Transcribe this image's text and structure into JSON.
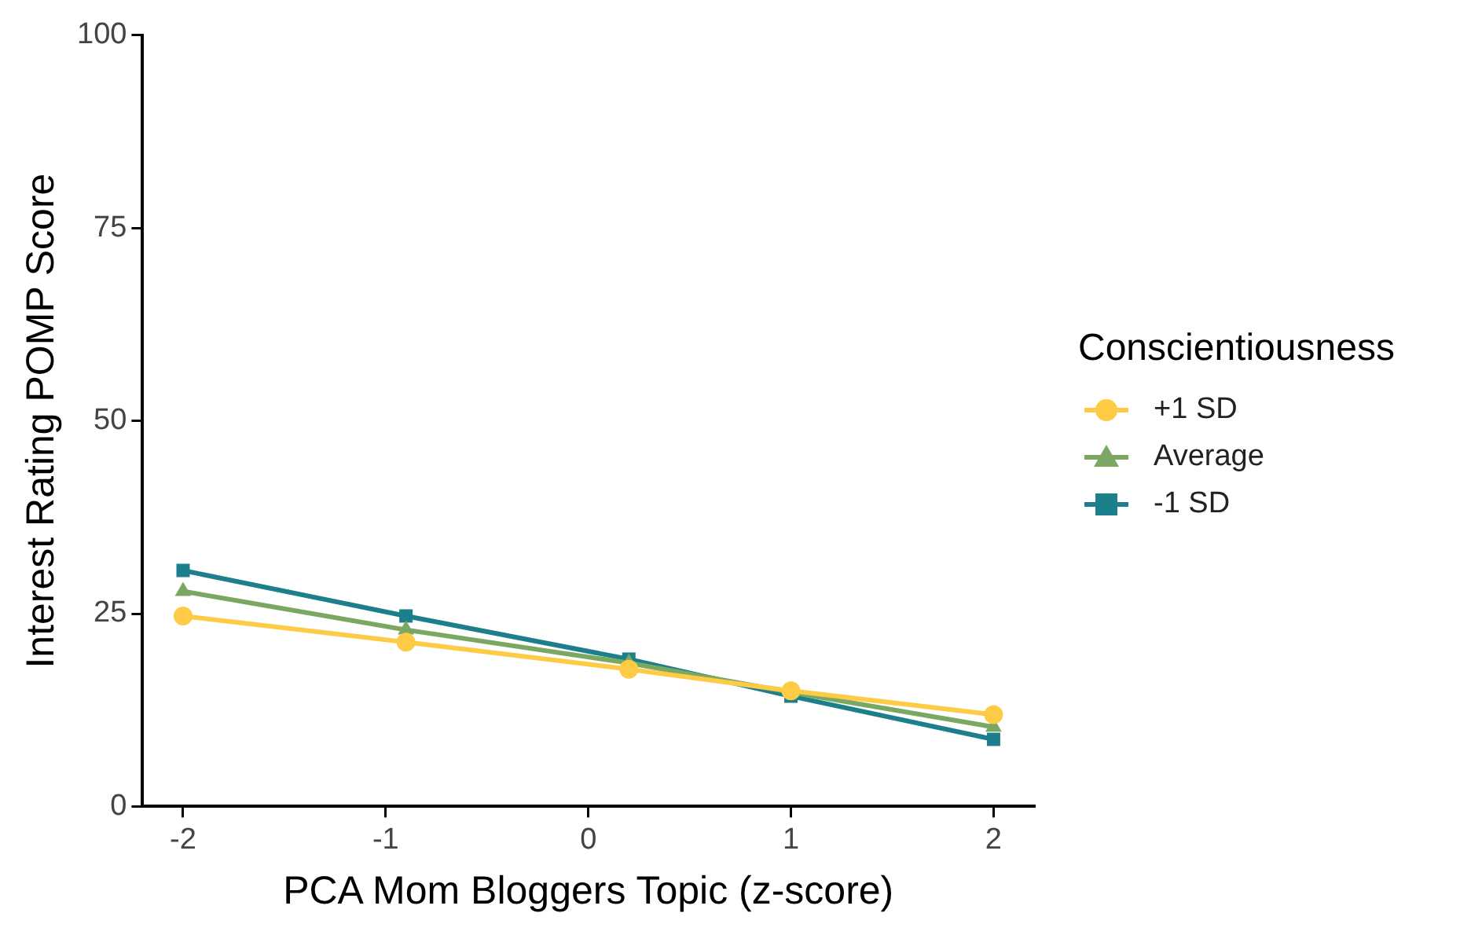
{
  "chart_data": {
    "type": "line",
    "xlabel": "PCA Mom Bloggers Topic (z-score)",
    "ylabel": "Interest Rating POMP Score",
    "legend_title": "Conscientiousness",
    "x": [
      -2,
      -0.9,
      0.2,
      1,
      2
    ],
    "series": [
      {
        "name": "+1 SD",
        "color": "#fdcb45",
        "marker": "circle",
        "values": [
          24.7,
          21.3,
          17.8,
          15.0,
          11.9
        ]
      },
      {
        "name": "Average",
        "color": "#7aa863",
        "marker": "triangle",
        "values": [
          27.9,
          22.9,
          18.6,
          14.8,
          10.3
        ]
      },
      {
        "name": "-1 SD",
        "color": "#1d7f8c",
        "marker": "square",
        "values": [
          30.6,
          24.7,
          19.1,
          14.3,
          8.7
        ]
      }
    ],
    "xlim": [
      -2.2,
      2.2
    ],
    "xticks": [
      -2,
      -1,
      0,
      1,
      2
    ],
    "ylim": [
      0,
      100
    ],
    "yticks": [
      0,
      25,
      50,
      75,
      100
    ],
    "grid": false,
    "legend": "right",
    "line_style": "solid"
  }
}
